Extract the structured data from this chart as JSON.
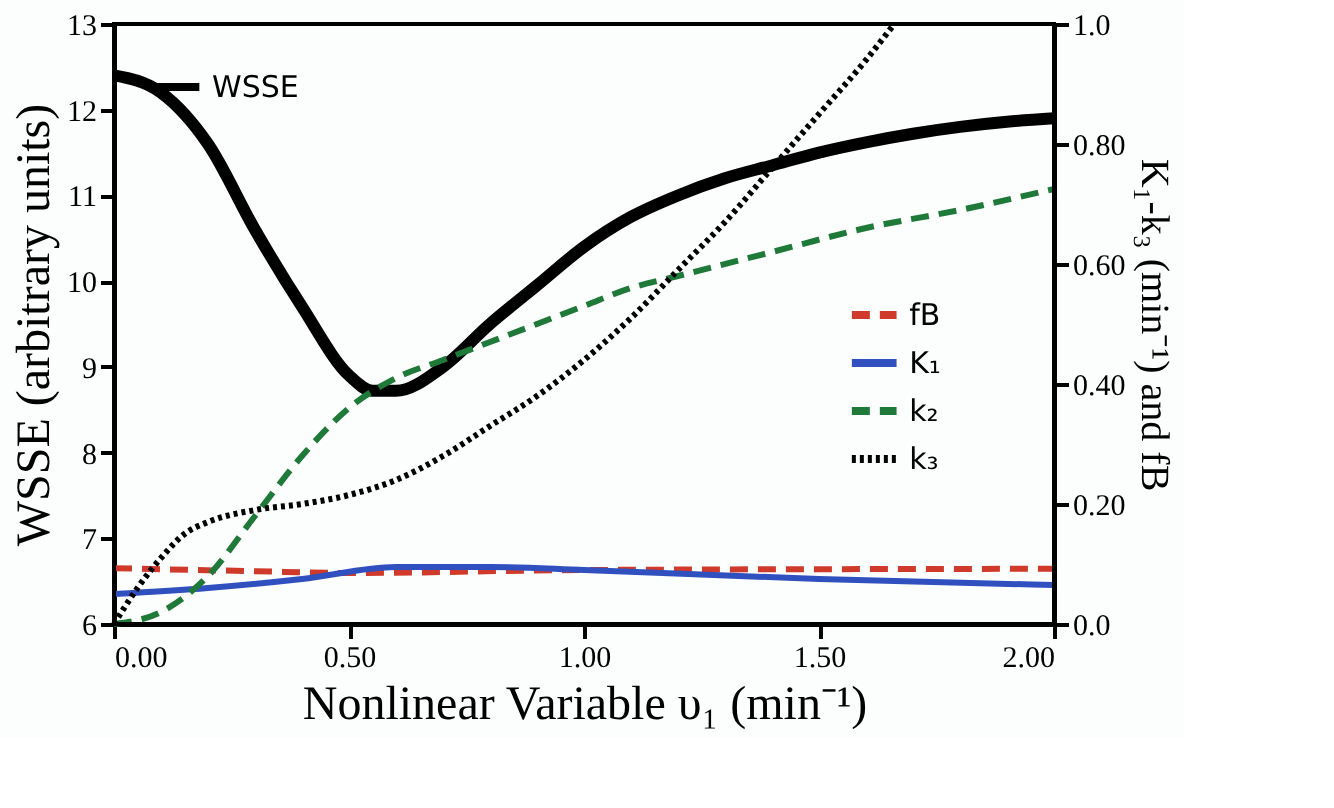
{
  "chart_data": {
    "type": "line",
    "xlabel": "Nonlinear Variable υ₁ (min⁻¹)",
    "ylabel": "WSSE (arbitrary units)",
    "y2label": "K₁-k₃ (min⁻¹) and fB",
    "xlim": [
      0,
      2
    ],
    "xticks": [
      {
        "value": 0,
        "label": "0.00"
      },
      {
        "value": 0.5,
        "label": "0.50"
      },
      {
        "value": 1,
        "label": "1.00"
      },
      {
        "value": 1.5,
        "label": "1.50"
      },
      {
        "value": 2,
        "label": "2.00"
      }
    ],
    "ylim": [
      6,
      13
    ],
    "yticks": [
      6,
      7,
      8,
      9,
      10,
      11,
      12,
      13
    ],
    "y2lim": [
      0,
      1
    ],
    "y2ticks": [
      {
        "value": 0,
        "label": "0.0"
      },
      {
        "value": 0.2,
        "label": "0.20"
      },
      {
        "value": 0.4,
        "label": "0.40"
      },
      {
        "value": 0.6,
        "label": "0.60"
      },
      {
        "value": 0.8,
        "label": "0.80"
      },
      {
        "value": 1,
        "label": "1.0"
      }
    ],
    "grid": false,
    "legend": "right",
    "marker": "none",
    "series": [
      {
        "name": "WSSE",
        "color": "#000000",
        "line_style": "solid",
        "x": [
          0,
          0.1,
          0.2,
          0.3,
          0.4,
          0.5,
          0.55,
          0.6,
          0.7,
          0.8,
          0.9,
          1.0,
          1.1,
          1.2,
          1.3,
          1.4,
          1.5,
          1.6,
          1.7,
          1.8,
          1.9,
          2.0
        ],
        "values": [
          12.4,
          12.2,
          11.6,
          10.6,
          9.7,
          8.9,
          8.72,
          8.72,
          9.0,
          9.5,
          9.95,
          10.4,
          10.75,
          11.0,
          11.2,
          11.35,
          11.5,
          11.62,
          11.72,
          11.8,
          11.86,
          11.9
        ]
      },
      {
        "name": "fB",
        "color": "#d03a2a",
        "line_style": "dashed",
        "axis": "y2",
        "x": [
          0,
          0.3,
          0.5,
          1.0,
          2.0
        ],
        "values": [
          0.093,
          0.088,
          0.085,
          0.09,
          0.092
        ]
      },
      {
        "name": "K₁",
        "color": "#3050c0",
        "line_style": "solid",
        "axis": "y2",
        "x": [
          0,
          0.2,
          0.4,
          0.6,
          0.8,
          1.0,
          1.5,
          2.0
        ],
        "values": [
          0.05,
          0.06,
          0.075,
          0.095,
          0.095,
          0.09,
          0.075,
          0.065
        ]
      },
      {
        "name": "k₂",
        "color": "#1f7a3a",
        "line_style": "dashed",
        "axis": "y2",
        "x": [
          0,
          0.1,
          0.2,
          0.3,
          0.4,
          0.5,
          0.6,
          0.7,
          0.8,
          0.9,
          1.0,
          1.1,
          1.2,
          1.4,
          1.6,
          1.8,
          2.0
        ],
        "values": [
          0.0,
          0.02,
          0.08,
          0.18,
          0.28,
          0.36,
          0.41,
          0.44,
          0.47,
          0.5,
          0.53,
          0.56,
          0.58,
          0.62,
          0.66,
          0.69,
          0.725
        ]
      },
      {
        "name": "k₃",
        "color": "#000000",
        "line_style": "dotted",
        "axis": "y2",
        "x": [
          0,
          0.05,
          0.1,
          0.15,
          0.2,
          0.3,
          0.4,
          0.5,
          0.6,
          0.7,
          0.8,
          0.9,
          1.0,
          1.1,
          1.2,
          1.3,
          1.4,
          1.5,
          1.6,
          1.66
        ],
        "values": [
          0.0,
          0.06,
          0.11,
          0.15,
          0.17,
          0.19,
          0.2,
          0.215,
          0.24,
          0.28,
          0.33,
          0.38,
          0.44,
          0.51,
          0.59,
          0.67,
          0.76,
          0.85,
          0.94,
          1.0
        ]
      }
    ]
  }
}
